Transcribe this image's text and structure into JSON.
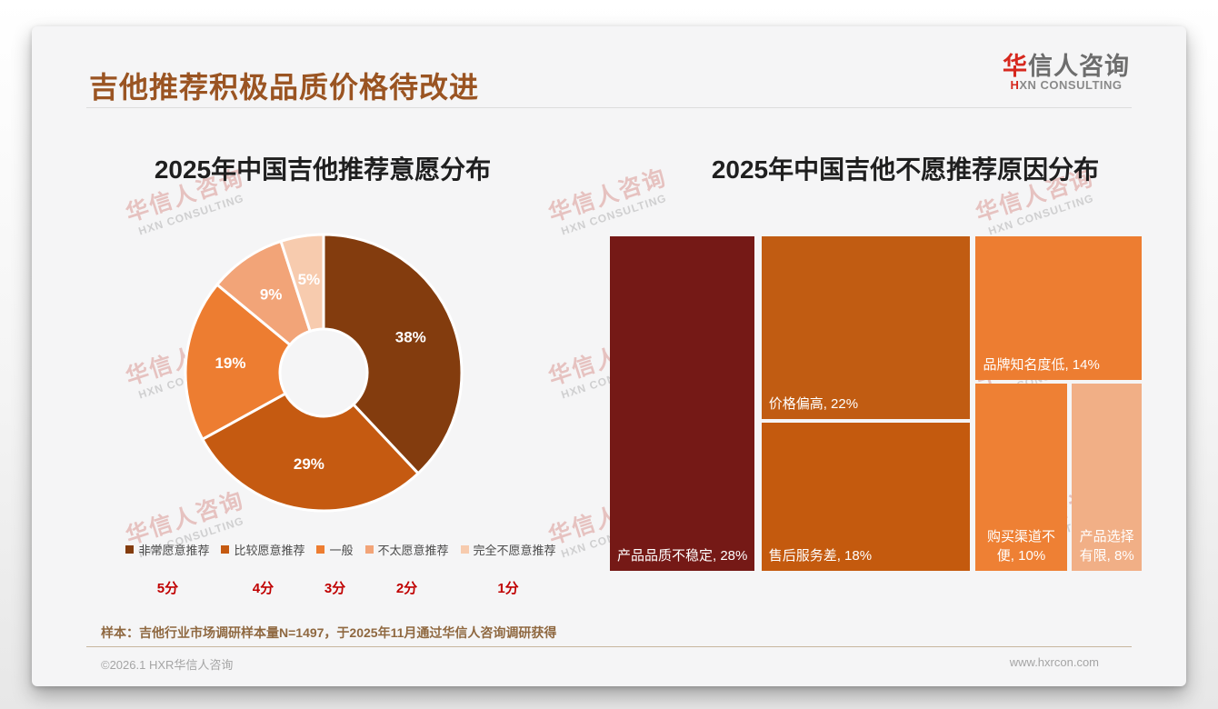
{
  "page": {
    "title": "吉他推荐积极品质价格待改进"
  },
  "logo": {
    "cn_first": "华",
    "cn_rest": "信人咨询",
    "en_first": "H",
    "en_rest": "XN CONSULTING"
  },
  "watermark": {
    "cn": "华信人咨询",
    "en": "HXN CONSULTING"
  },
  "chart_data": [
    {
      "type": "pie",
      "subtype": "donut",
      "title": "2025年中国吉他推荐意愿分布",
      "categories": [
        "非常愿意推荐",
        "比较愿意推荐",
        "一般",
        "不太愿意推荐",
        "完全不愿意推荐"
      ],
      "values": [
        38,
        29,
        19,
        9,
        5
      ],
      "unit": "%",
      "scores": [
        "5分",
        "4分",
        "3分",
        "2分",
        "1分"
      ],
      "colors": [
        "#833C0E",
        "#C55A11",
        "#ED7D31",
        "#F2A478",
        "#F7CBAE"
      ],
      "hole_ratio": 0.31,
      "start_angle": 0,
      "direction": "clockwise",
      "label_color": "#FFFFFF",
      "legend_position": "bottom"
    },
    {
      "type": "treemap",
      "title": "2025年中国吉他不愿推荐原因分布",
      "items": [
        {
          "label": "产品品质不稳定",
          "value": 28,
          "color": "#751916",
          "label_pos": "bl",
          "rect": {
            "x": 0,
            "y": 0,
            "w": 27.2,
            "h": 100
          }
        },
        {
          "label": "价格偏高",
          "value": 22,
          "color": "#C15C12",
          "label_pos": "bl",
          "rect": {
            "x": 28.5,
            "y": 0,
            "w": 39.2,
            "h": 54.6
          }
        },
        {
          "label": "售后服务差",
          "value": 18,
          "color": "#C45A0E",
          "label_pos": "bl",
          "rect": {
            "x": 28.5,
            "y": 55.7,
            "w": 39.2,
            "h": 44.3
          }
        },
        {
          "label": "品牌知名度低",
          "value": 14,
          "color": "#ED7D31",
          "label_pos": "bl",
          "rect": {
            "x": 68.8,
            "y": 0,
            "w": 31.2,
            "h": 42.9
          }
        },
        {
          "label": "购买渠道不便",
          "value": 10,
          "color": "#EE8034",
          "label_pos": "bc",
          "rect": {
            "x": 68.8,
            "y": 44.0,
            "w": 17.1,
            "h": 56.0
          }
        },
        {
          "label": "产品选择有限",
          "value": 8,
          "color": "#F1AF86",
          "label_pos": "bc",
          "rect": {
            "x": 86.9,
            "y": 44.0,
            "w": 13.1,
            "h": 56.0
          }
        }
      ],
      "value_label_format": "{label}, {value}%"
    }
  ],
  "note": {
    "text": "样本：吉他行业市场调研样本量N=1497，于2025年11月通过华信人咨询调研获得"
  },
  "footer": {
    "copyright": "©2026.1 HXR华信人咨询",
    "website": "www.hxrcon.com"
  }
}
